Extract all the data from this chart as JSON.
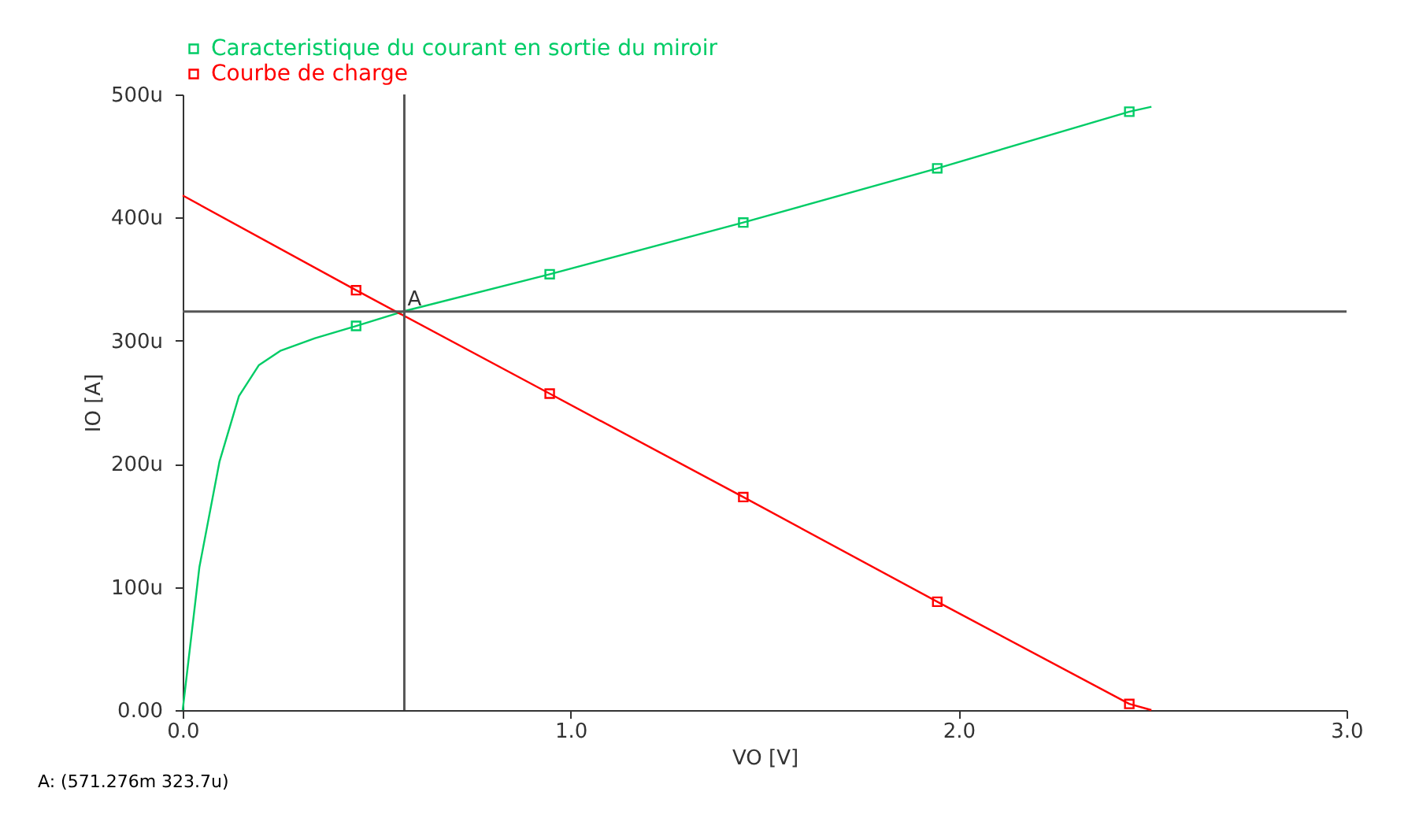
{
  "chart_data": {
    "type": "line",
    "xlabel": "VO  [V]",
    "ylabel": "IO  [A]",
    "xlim": [
      0,
      3
    ],
    "ylim": [
      0,
      500
    ],
    "xticks": [
      {
        "value": 0,
        "label": "0.0"
      },
      {
        "value": 1,
        "label": "1.0"
      },
      {
        "value": 2,
        "label": "2.0"
      },
      {
        "value": 3,
        "label": "3.0"
      }
    ],
    "yticks": [
      {
        "value": 0,
        "label": "0.00"
      },
      {
        "value": 100,
        "label": "100u"
      },
      {
        "value": 200,
        "label": "200u"
      },
      {
        "value": 300,
        "label": "300u"
      },
      {
        "value": 400,
        "label": "400u"
      },
      {
        "value": 500,
        "label": "500u"
      }
    ],
    "grid": false,
    "legend": "top left",
    "marker": "none",
    "series": [
      {
        "name": "Caracteristique du courant en sortie du miroir",
        "color": "#00cc66",
        "x": [
          0,
          0.043,
          0.095,
          0.145,
          0.196,
          0.253,
          0.341,
          0.447,
          0.571,
          0.946,
          1.445,
          1.945,
          2.44,
          2.497
        ],
        "values": [
          0,
          116,
          202,
          255,
          280,
          292,
          302,
          312,
          324,
          354,
          396,
          440,
          486,
          490
        ]
      },
      {
        "name": "Courbe de charge",
        "color": "#ff0000",
        "x": [
          0,
          0.447,
          0.946,
          1.445,
          1.945,
          2.44,
          2.497
        ],
        "values": [
          418,
          341,
          257,
          173,
          88,
          5,
          0
        ]
      },
      {
        "type": "scatter",
        "marker": "square",
        "color": "#00cc66",
        "x": [
          0.447,
          0.946,
          1.445,
          1.945,
          2.44
        ],
        "values": [
          312,
          354,
          396,
          440,
          486
        ]
      },
      {
        "type": "scatter",
        "marker": "square",
        "color": "#ff0000",
        "x": [
          0.447,
          0.946,
          1.445,
          1.945,
          2.44
        ],
        "values": [
          341,
          257,
          173,
          88,
          5
        ]
      }
    ],
    "ref_lines": [
      {
        "axis": "x",
        "value": 0.571276,
        "label": "A",
        "color": "#555555"
      },
      {
        "axis": "y",
        "value": 323.7,
        "color": "#555555"
      }
    ],
    "annotations": [
      "A: (571.276m 323.7u)"
    ]
  }
}
